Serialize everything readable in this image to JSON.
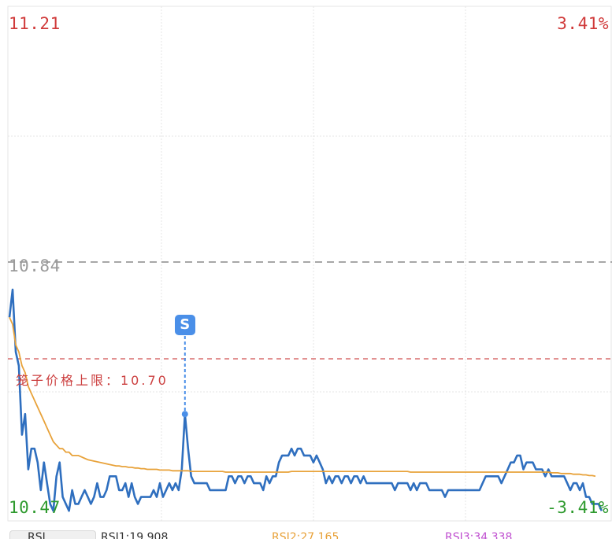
{
  "chart_data": {
    "type": "line",
    "y_max_label": "11.21",
    "y_min_label": "10.47",
    "prev_close_label": "10.84",
    "pct_max_label": "3.41%",
    "pct_min_label": "-3.41%",
    "ylim": [
      10.47,
      11.21
    ],
    "prev_close": 10.84,
    "price_limit": {
      "label": "笼子价格上限：10.70",
      "value": 10.7
    },
    "marker": {
      "label": "S",
      "index": 56,
      "price": 10.62
    },
    "grid": true,
    "x_count": 186,
    "series": [
      {
        "role": "price",
        "color": "#2f6fbf",
        "values": [
          10.76,
          10.8,
          10.71,
          10.69,
          10.59,
          10.62,
          10.54,
          10.57,
          10.57,
          10.55,
          10.51,
          10.55,
          10.52,
          10.49,
          10.48,
          10.53,
          10.55,
          10.5,
          10.49,
          10.48,
          10.51,
          10.49,
          10.49,
          10.5,
          10.51,
          10.5,
          10.49,
          10.5,
          10.52,
          10.5,
          10.5,
          10.51,
          10.53,
          10.53,
          10.53,
          10.51,
          10.51,
          10.52,
          10.5,
          10.52,
          10.5,
          10.49,
          10.5,
          10.5,
          10.5,
          10.5,
          10.51,
          10.5,
          10.52,
          10.5,
          10.51,
          10.52,
          10.51,
          10.52,
          10.51,
          10.54,
          10.62,
          10.57,
          10.53,
          10.52,
          10.52,
          10.52,
          10.52,
          10.52,
          10.51,
          10.51,
          10.51,
          10.51,
          10.51,
          10.51,
          10.53,
          10.53,
          10.52,
          10.53,
          10.53,
          10.52,
          10.53,
          10.53,
          10.52,
          10.52,
          10.52,
          10.51,
          10.53,
          10.52,
          10.53,
          10.53,
          10.55,
          10.56,
          10.56,
          10.56,
          10.57,
          10.56,
          10.57,
          10.57,
          10.56,
          10.56,
          10.56,
          10.55,
          10.56,
          10.55,
          10.54,
          10.52,
          10.53,
          10.52,
          10.53,
          10.53,
          10.52,
          10.53,
          10.53,
          10.52,
          10.53,
          10.53,
          10.52,
          10.53,
          10.52,
          10.52,
          10.52,
          10.52,
          10.52,
          10.52,
          10.52,
          10.52,
          10.52,
          10.51,
          10.52,
          10.52,
          10.52,
          10.52,
          10.51,
          10.52,
          10.51,
          10.52,
          10.52,
          10.52,
          10.51,
          10.51,
          10.51,
          10.51,
          10.51,
          10.5,
          10.51,
          10.51,
          10.51,
          10.51,
          10.51,
          10.51,
          10.51,
          10.51,
          10.51,
          10.51,
          10.51,
          10.52,
          10.53,
          10.53,
          10.53,
          10.53,
          10.53,
          10.52,
          10.53,
          10.54,
          10.55,
          10.55,
          10.56,
          10.56,
          10.54,
          10.55,
          10.55,
          10.55,
          10.54,
          10.54,
          10.54,
          10.53,
          10.54,
          10.53,
          10.53,
          10.53,
          10.53,
          10.53,
          10.52,
          10.51,
          10.52,
          10.52,
          10.51,
          10.52,
          10.5,
          10.5,
          10.49,
          10.49,
          10.49,
          10.48
        ]
      },
      {
        "role": "average",
        "color": "#e8a23a",
        "values": [
          10.76,
          10.75,
          10.72,
          10.71,
          10.69,
          10.68,
          10.66,
          10.65,
          10.64,
          10.63,
          10.62,
          10.61,
          10.6,
          10.59,
          10.58,
          10.575,
          10.57,
          10.57,
          10.565,
          10.565,
          10.56,
          10.56,
          10.56,
          10.558,
          10.556,
          10.554,
          10.553,
          10.552,
          10.551,
          10.55,
          10.549,
          10.548,
          10.547,
          10.546,
          10.545,
          10.545,
          10.544,
          10.544,
          10.543,
          10.543,
          10.542,
          10.542,
          10.541,
          10.541,
          10.54,
          10.54,
          10.54,
          10.54,
          10.539,
          10.539,
          10.539,
          10.539,
          10.538,
          10.538,
          10.538,
          10.538,
          10.538,
          10.538,
          10.537,
          10.537,
          10.537,
          10.537,
          10.537,
          10.537,
          10.537,
          10.537,
          10.537,
          10.537,
          10.537,
          10.536,
          10.536,
          10.536,
          10.536,
          10.536,
          10.536,
          10.536,
          10.536,
          10.536,
          10.536,
          10.536,
          10.536,
          10.536,
          10.536,
          10.536,
          10.536,
          10.536,
          10.536,
          10.536,
          10.536,
          10.536,
          10.537,
          10.537,
          10.537,
          10.537,
          10.537,
          10.537,
          10.537,
          10.537,
          10.537,
          10.537,
          10.537,
          10.537,
          10.537,
          10.537,
          10.537,
          10.537,
          10.537,
          10.537,
          10.537,
          10.537,
          10.537,
          10.537,
          10.537,
          10.537,
          10.537,
          10.537,
          10.537,
          10.537,
          10.537,
          10.537,
          10.537,
          10.537,
          10.537,
          10.537,
          10.537,
          10.537,
          10.537,
          10.537,
          10.536,
          10.536,
          10.536,
          10.536,
          10.536,
          10.536,
          10.536,
          10.536,
          10.536,
          10.536,
          10.536,
          10.536,
          10.536,
          10.536,
          10.536,
          10.536,
          10.536,
          10.536,
          10.536,
          10.536,
          10.536,
          10.536,
          10.536,
          10.536,
          10.536,
          10.536,
          10.536,
          10.536,
          10.536,
          10.536,
          10.536,
          10.536,
          10.536,
          10.536,
          10.536,
          10.536,
          10.536,
          10.536,
          10.536,
          10.536,
          10.536,
          10.536,
          10.536,
          10.536,
          10.536,
          10.535,
          10.535,
          10.535,
          10.534,
          10.534,
          10.534,
          10.534,
          10.533,
          10.533,
          10.533,
          10.532,
          10.532,
          10.531,
          10.531,
          10.53
        ]
      }
    ]
  },
  "rsi_bar": {
    "tab": "RSI",
    "rsi1": "RSI1:19.908",
    "rsi2": "RSI2:27.165",
    "rsi3": "RSI3:34.338"
  }
}
